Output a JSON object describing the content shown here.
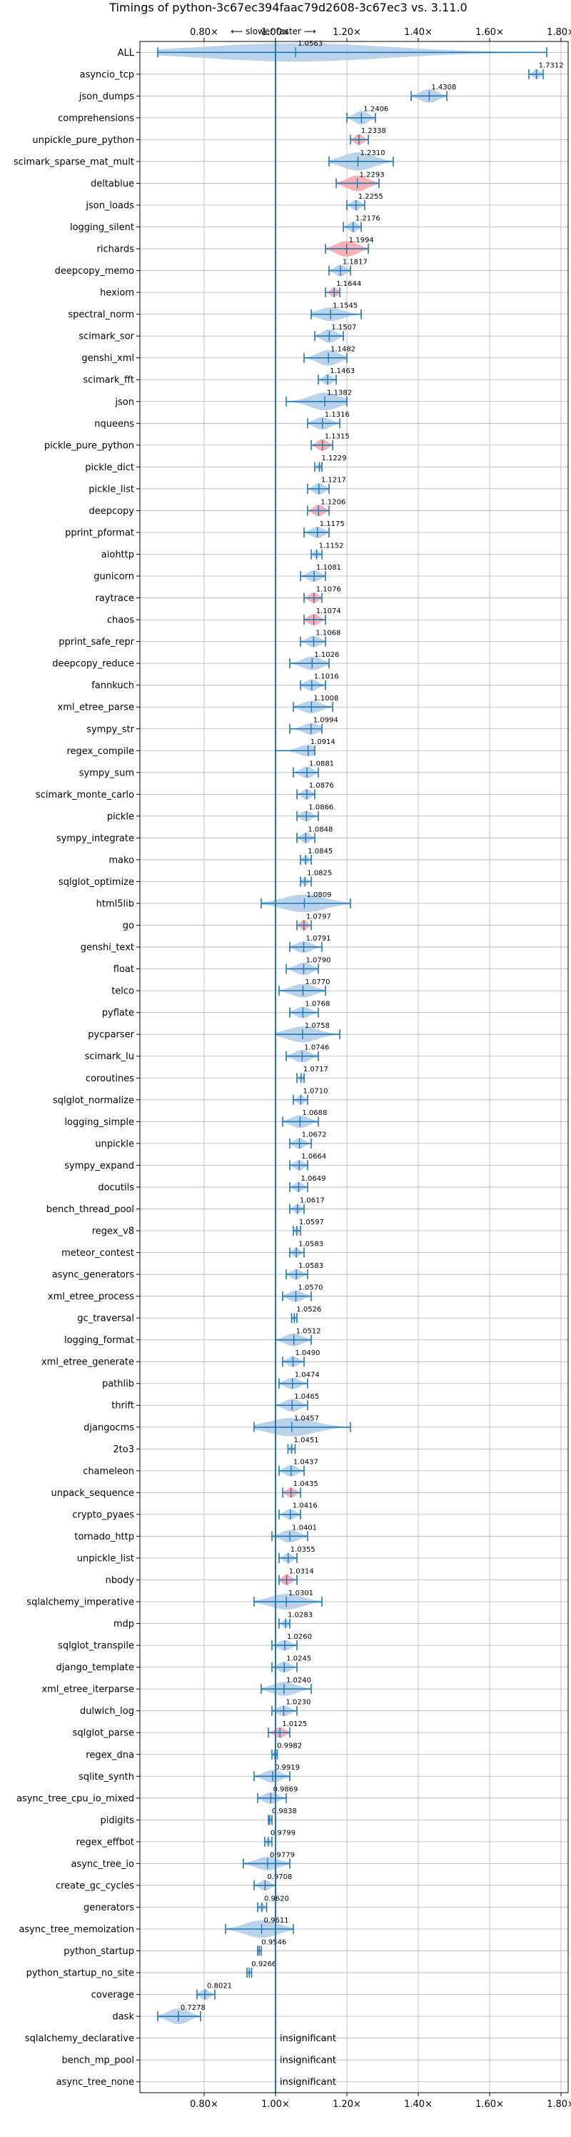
{
  "chart_data": {
    "type": "violin",
    "title": "Timings of python-3c67ec394faac79d2608-3c67ec3 vs. 3.11.0",
    "direction_hint": "⟵ slower   faster ⟶",
    "xlim": [
      0.62,
      1.82
    ],
    "x_ticks": [
      {
        "value": 0.8,
        "label": "0.80×"
      },
      {
        "value": 1.0,
        "label": "1.00×"
      },
      {
        "value": 1.2,
        "label": "1.20×"
      },
      {
        "value": 1.4,
        "label": "1.40×"
      },
      {
        "value": 1.6,
        "label": "1.60×"
      },
      {
        "value": 1.8,
        "label": "1.80×"
      }
    ],
    "reference_line": 1.0,
    "grid": true,
    "colors": {
      "normal": "#aecbe8",
      "highlight": "#f4a3a8",
      "accent": "#1f77b4"
    },
    "insignificant_label": "insignificant",
    "benchmarks": [
      {
        "name": "ALL",
        "label": "1.0563",
        "value": 1.0563,
        "lo": 0.67,
        "hi": 1.76,
        "spread": 0.11,
        "highlight": false
      },
      {
        "name": "asyncio_tcp",
        "label": "1.7312",
        "value": 1.7312,
        "lo": 1.71,
        "hi": 1.75,
        "spread": 0.02,
        "highlight": false
      },
      {
        "name": "json_dumps",
        "label": "1.4308",
        "value": 1.4308,
        "lo": 1.38,
        "hi": 1.48,
        "spread": 0.04,
        "highlight": false
      },
      {
        "name": "comprehensions",
        "label": "1.2406",
        "value": 1.2406,
        "lo": 1.2,
        "hi": 1.28,
        "spread": 0.04,
        "highlight": false
      },
      {
        "name": "unpickle_pure_python",
        "label": "1.2338",
        "value": 1.2338,
        "lo": 1.21,
        "hi": 1.26,
        "spread": 0.025,
        "highlight": true
      },
      {
        "name": "scimark_sparse_mat_mult",
        "label": "1.2310",
        "value": 1.231,
        "lo": 1.15,
        "hi": 1.33,
        "spread": 0.07,
        "highlight": false
      },
      {
        "name": "deltablue",
        "label": "1.2293",
        "value": 1.2293,
        "lo": 1.17,
        "hi": 1.29,
        "spread": 0.05,
        "highlight": true
      },
      {
        "name": "json_loads",
        "label": "1.2255",
        "value": 1.2255,
        "lo": 1.2,
        "hi": 1.25,
        "spread": 0.025,
        "highlight": false
      },
      {
        "name": "logging_silent",
        "label": "1.2176",
        "value": 1.2176,
        "lo": 1.19,
        "hi": 1.24,
        "spread": 0.025,
        "highlight": false
      },
      {
        "name": "richards",
        "label": "1.1994",
        "value": 1.1994,
        "lo": 1.14,
        "hi": 1.26,
        "spread": 0.05,
        "highlight": true
      },
      {
        "name": "deepcopy_memo",
        "label": "1.1817",
        "value": 1.1817,
        "lo": 1.15,
        "hi": 1.21,
        "spread": 0.03,
        "highlight": false
      },
      {
        "name": "hexiom",
        "label": "1.1644",
        "value": 1.1644,
        "lo": 1.14,
        "hi": 1.18,
        "spread": 0.02,
        "highlight": true
      },
      {
        "name": "spectral_norm",
        "label": "1.1545",
        "value": 1.1545,
        "lo": 1.1,
        "hi": 1.24,
        "spread": 0.04,
        "highlight": false
      },
      {
        "name": "scimark_sor",
        "label": "1.1507",
        "value": 1.1507,
        "lo": 1.11,
        "hi": 1.19,
        "spread": 0.04,
        "highlight": false
      },
      {
        "name": "genshi_xml",
        "label": "1.1482",
        "value": 1.1482,
        "lo": 1.08,
        "hi": 1.2,
        "spread": 0.05,
        "highlight": false
      },
      {
        "name": "scimark_fft",
        "label": "1.1463",
        "value": 1.1463,
        "lo": 1.12,
        "hi": 1.17,
        "spread": 0.025,
        "highlight": false
      },
      {
        "name": "json",
        "label": "1.1382",
        "value": 1.1382,
        "lo": 1.03,
        "hi": 1.2,
        "spread": 0.06,
        "highlight": false
      },
      {
        "name": "nqueens",
        "label": "1.1316",
        "value": 1.1316,
        "lo": 1.09,
        "hi": 1.18,
        "spread": 0.035,
        "highlight": false
      },
      {
        "name": "pickle_pure_python",
        "label": "1.1315",
        "value": 1.1315,
        "lo": 1.1,
        "hi": 1.16,
        "spread": 0.03,
        "highlight": true
      },
      {
        "name": "pickle_dict",
        "label": "1.1229",
        "value": 1.1229,
        "lo": 1.11,
        "hi": 1.13,
        "spread": 0.012,
        "highlight": false
      },
      {
        "name": "pickle_list",
        "label": "1.1217",
        "value": 1.1217,
        "lo": 1.09,
        "hi": 1.15,
        "spread": 0.03,
        "highlight": false
      },
      {
        "name": "deepcopy",
        "label": "1.1206",
        "value": 1.1206,
        "lo": 1.09,
        "hi": 1.15,
        "spread": 0.03,
        "highlight": true
      },
      {
        "name": "pprint_pformat",
        "label": "1.1175",
        "value": 1.1175,
        "lo": 1.08,
        "hi": 1.15,
        "spread": 0.03,
        "highlight": false
      },
      {
        "name": "aiohttp",
        "label": "1.1152",
        "value": 1.1152,
        "lo": 1.1,
        "hi": 1.13,
        "spread": 0.015,
        "highlight": false
      },
      {
        "name": "gunicorn",
        "label": "1.1081",
        "value": 1.1081,
        "lo": 1.07,
        "hi": 1.14,
        "spread": 0.03,
        "highlight": false
      },
      {
        "name": "raytrace",
        "label": "1.1076",
        "value": 1.1076,
        "lo": 1.08,
        "hi": 1.13,
        "spread": 0.025,
        "highlight": true
      },
      {
        "name": "chaos",
        "label": "1.1074",
        "value": 1.1074,
        "lo": 1.08,
        "hi": 1.14,
        "spread": 0.03,
        "highlight": true
      },
      {
        "name": "pprint_safe_repr",
        "label": "1.1068",
        "value": 1.1068,
        "lo": 1.07,
        "hi": 1.14,
        "spread": 0.03,
        "highlight": false
      },
      {
        "name": "deepcopy_reduce",
        "label": "1.1026",
        "value": 1.1026,
        "lo": 1.04,
        "hi": 1.15,
        "spread": 0.04,
        "highlight": false
      },
      {
        "name": "fannkuch",
        "label": "1.1016",
        "value": 1.1016,
        "lo": 1.07,
        "hi": 1.14,
        "spread": 0.03,
        "highlight": false
      },
      {
        "name": "xml_etree_parse",
        "label": "1.1008",
        "value": 1.1008,
        "lo": 1.05,
        "hi": 1.16,
        "spread": 0.035,
        "highlight": false
      },
      {
        "name": "sympy_str",
        "label": "1.0994",
        "value": 1.0994,
        "lo": 1.04,
        "hi": 1.13,
        "spread": 0.03,
        "highlight": false
      },
      {
        "name": "regex_compile",
        "label": "1.0914",
        "value": 1.0914,
        "lo": 1.0,
        "hi": 1.11,
        "spread": 0.03,
        "highlight": false
      },
      {
        "name": "sympy_sum",
        "label": "1.0881",
        "value": 1.0881,
        "lo": 1.05,
        "hi": 1.12,
        "spread": 0.03,
        "highlight": false
      },
      {
        "name": "scimark_monte_carlo",
        "label": "1.0876",
        "value": 1.0876,
        "lo": 1.06,
        "hi": 1.11,
        "spread": 0.025,
        "highlight": false
      },
      {
        "name": "pickle",
        "label": "1.0866",
        "value": 1.0866,
        "lo": 1.06,
        "hi": 1.12,
        "spread": 0.025,
        "highlight": false
      },
      {
        "name": "sympy_integrate",
        "label": "1.0848",
        "value": 1.0848,
        "lo": 1.06,
        "hi": 1.11,
        "spread": 0.025,
        "highlight": false
      },
      {
        "name": "mako",
        "label": "1.0845",
        "value": 1.0845,
        "lo": 1.07,
        "hi": 1.1,
        "spread": 0.015,
        "highlight": false
      },
      {
        "name": "sqlglot_optimize",
        "label": "1.0825",
        "value": 1.0825,
        "lo": 1.07,
        "hi": 1.1,
        "spread": 0.015,
        "highlight": false
      },
      {
        "name": "html5lib",
        "label": "1.0809",
        "value": 1.0809,
        "lo": 0.96,
        "hi": 1.21,
        "spread": 0.06,
        "highlight": false
      },
      {
        "name": "go",
        "label": "1.0797",
        "value": 1.0797,
        "lo": 1.06,
        "hi": 1.1,
        "spread": 0.025,
        "highlight": true
      },
      {
        "name": "genshi_text",
        "label": "1.0791",
        "value": 1.0791,
        "lo": 1.04,
        "hi": 1.13,
        "spread": 0.03,
        "highlight": false
      },
      {
        "name": "float",
        "label": "1.0790",
        "value": 1.079,
        "lo": 1.03,
        "hi": 1.12,
        "spread": 0.035,
        "highlight": false
      },
      {
        "name": "telco",
        "label": "1.0770",
        "value": 1.077,
        "lo": 1.01,
        "hi": 1.14,
        "spread": 0.04,
        "highlight": false
      },
      {
        "name": "pyflate",
        "label": "1.0768",
        "value": 1.0768,
        "lo": 1.04,
        "hi": 1.12,
        "spread": 0.03,
        "highlight": false
      },
      {
        "name": "pycparser",
        "label": "1.0758",
        "value": 1.0758,
        "lo": 1.0,
        "hi": 1.18,
        "spread": 0.05,
        "highlight": false
      },
      {
        "name": "scimark_lu",
        "label": "1.0746",
        "value": 1.0746,
        "lo": 1.03,
        "hi": 1.12,
        "spread": 0.035,
        "highlight": false
      },
      {
        "name": "coroutines",
        "label": "1.0717",
        "value": 1.0717,
        "lo": 1.06,
        "hi": 1.08,
        "spread": 0.01,
        "highlight": false
      },
      {
        "name": "sqlglot_normalize",
        "label": "1.0710",
        "value": 1.071,
        "lo": 1.05,
        "hi": 1.09,
        "spread": 0.02,
        "highlight": false
      },
      {
        "name": "logging_simple",
        "label": "1.0688",
        "value": 1.0688,
        "lo": 1.02,
        "hi": 1.12,
        "spread": 0.035,
        "highlight": false
      },
      {
        "name": "unpickle",
        "label": "1.0672",
        "value": 1.0672,
        "lo": 1.04,
        "hi": 1.1,
        "spread": 0.025,
        "highlight": false
      },
      {
        "name": "sympy_expand",
        "label": "1.0664",
        "value": 1.0664,
        "lo": 1.04,
        "hi": 1.09,
        "spread": 0.025,
        "highlight": false
      },
      {
        "name": "docutils",
        "label": "1.0649",
        "value": 1.0649,
        "lo": 1.04,
        "hi": 1.09,
        "spread": 0.02,
        "highlight": false
      },
      {
        "name": "bench_thread_pool",
        "label": "1.0617",
        "value": 1.0617,
        "lo": 1.04,
        "hi": 1.08,
        "spread": 0.02,
        "highlight": false
      },
      {
        "name": "regex_v8",
        "label": "1.0597",
        "value": 1.0597,
        "lo": 1.05,
        "hi": 1.07,
        "spread": 0.01,
        "highlight": false
      },
      {
        "name": "meteor_contest",
        "label": "1.0583",
        "value": 1.0583,
        "lo": 1.04,
        "hi": 1.08,
        "spread": 0.02,
        "highlight": false
      },
      {
        "name": "async_generators",
        "label": "1.0583",
        "value": 1.0583,
        "lo": 1.03,
        "hi": 1.09,
        "spread": 0.025,
        "highlight": false
      },
      {
        "name": "xml_etree_process",
        "label": "1.0570",
        "value": 1.057,
        "lo": 1.02,
        "hi": 1.1,
        "spread": 0.03,
        "highlight": false
      },
      {
        "name": "gc_traversal",
        "label": "1.0526",
        "value": 1.0526,
        "lo": 1.045,
        "hi": 1.06,
        "spread": 0.008,
        "highlight": false
      },
      {
        "name": "logging_format",
        "label": "1.0512",
        "value": 1.0512,
        "lo": 1.0,
        "hi": 1.1,
        "spread": 0.035,
        "highlight": false
      },
      {
        "name": "xml_etree_generate",
        "label": "1.0490",
        "value": 1.049,
        "lo": 1.02,
        "hi": 1.08,
        "spread": 0.025,
        "highlight": false
      },
      {
        "name": "pathlib",
        "label": "1.0474",
        "value": 1.0474,
        "lo": 1.01,
        "hi": 1.09,
        "spread": 0.03,
        "highlight": false
      },
      {
        "name": "thrift",
        "label": "1.0465",
        "value": 1.0465,
        "lo": 1.0,
        "hi": 1.09,
        "spread": 0.035,
        "highlight": false
      },
      {
        "name": "djangocms",
        "label": "1.0457",
        "value": 1.0457,
        "lo": 0.94,
        "hi": 1.21,
        "spread": 0.07,
        "highlight": false
      },
      {
        "name": "2to3",
        "label": "1.0451",
        "value": 1.0451,
        "lo": 1.035,
        "hi": 1.055,
        "spread": 0.01,
        "highlight": false
      },
      {
        "name": "chameleon",
        "label": "1.0437",
        "value": 1.0437,
        "lo": 1.01,
        "hi": 1.08,
        "spread": 0.03,
        "highlight": false
      },
      {
        "name": "unpack_sequence",
        "label": "1.0435",
        "value": 1.0435,
        "lo": 1.02,
        "hi": 1.07,
        "spread": 0.02,
        "highlight": true
      },
      {
        "name": "crypto_pyaes",
        "label": "1.0416",
        "value": 1.0416,
        "lo": 1.01,
        "hi": 1.07,
        "spread": 0.025,
        "highlight": false
      },
      {
        "name": "tornado_http",
        "label": "1.0401",
        "value": 1.0401,
        "lo": 0.99,
        "hi": 1.09,
        "spread": 0.035,
        "highlight": false
      },
      {
        "name": "unpickle_list",
        "label": "1.0355",
        "value": 1.0355,
        "lo": 1.01,
        "hi": 1.06,
        "spread": 0.02,
        "highlight": false
      },
      {
        "name": "nbody",
        "label": "1.0314",
        "value": 1.0314,
        "lo": 1.01,
        "hi": 1.06,
        "spread": 0.025,
        "highlight": true
      },
      {
        "name": "sqlalchemy_imperative",
        "label": "1.0301",
        "value": 1.0301,
        "lo": 0.94,
        "hi": 1.13,
        "spread": 0.05,
        "highlight": false
      },
      {
        "name": "mdp",
        "label": "1.0283",
        "value": 1.0283,
        "lo": 1.01,
        "hi": 1.04,
        "spread": 0.015,
        "highlight": false
      },
      {
        "name": "sqlglot_transpile",
        "label": "1.0260",
        "value": 1.026,
        "lo": 0.99,
        "hi": 1.06,
        "spread": 0.025,
        "highlight": false
      },
      {
        "name": "django_template",
        "label": "1.0245",
        "value": 1.0245,
        "lo": 0.99,
        "hi": 1.06,
        "spread": 0.025,
        "highlight": false
      },
      {
        "name": "xml_etree_iterparse",
        "label": "1.0240",
        "value": 1.024,
        "lo": 0.96,
        "hi": 1.1,
        "spread": 0.04,
        "highlight": false
      },
      {
        "name": "dulwich_log",
        "label": "1.0230",
        "value": 1.023,
        "lo": 0.99,
        "hi": 1.06,
        "spread": 0.025,
        "highlight": false
      },
      {
        "name": "sqlglot_parse",
        "label": "1.0125",
        "value": 1.0125,
        "lo": 0.98,
        "hi": 1.04,
        "spread": 0.025,
        "highlight": true
      },
      {
        "name": "regex_dna",
        "label": "0.9982",
        "value": 0.9982,
        "lo": 0.99,
        "hi": 1.005,
        "spread": 0.008,
        "highlight": false
      },
      {
        "name": "sqlite_synth",
        "label": "0.9919",
        "value": 0.9919,
        "lo": 0.94,
        "hi": 1.04,
        "spread": 0.035,
        "highlight": false
      },
      {
        "name": "async_tree_cpu_io_mixed",
        "label": "0.9869",
        "value": 0.9869,
        "lo": 0.95,
        "hi": 1.03,
        "spread": 0.03,
        "highlight": false
      },
      {
        "name": "pidigits",
        "label": "0.9838",
        "value": 0.9838,
        "lo": 0.98,
        "hi": 0.99,
        "spread": 0.006,
        "highlight": false
      },
      {
        "name": "regex_effbot",
        "label": "0.9799",
        "value": 0.9799,
        "lo": 0.97,
        "hi": 0.99,
        "spread": 0.01,
        "highlight": false
      },
      {
        "name": "async_tree_io",
        "label": "0.9779",
        "value": 0.9779,
        "lo": 0.91,
        "hi": 1.04,
        "spread": 0.04,
        "highlight": false
      },
      {
        "name": "create_gc_cycles",
        "label": "0.9708",
        "value": 0.9708,
        "lo": 0.94,
        "hi": 1.0,
        "spread": 0.025,
        "highlight": false
      },
      {
        "name": "generators",
        "label": "0.9620",
        "value": 0.962,
        "lo": 0.95,
        "hi": 0.975,
        "spread": 0.012,
        "highlight": false
      },
      {
        "name": "async_tree_memoization",
        "label": "0.9611",
        "value": 0.9611,
        "lo": 0.86,
        "hi": 1.05,
        "spread": 0.06,
        "highlight": false
      },
      {
        "name": "python_startup",
        "label": "0.9546",
        "value": 0.9546,
        "lo": 0.95,
        "hi": 0.96,
        "spread": 0.006,
        "highlight": false
      },
      {
        "name": "python_startup_no_site",
        "label": "0.9266",
        "value": 0.9266,
        "lo": 0.92,
        "hi": 0.933,
        "spread": 0.006,
        "highlight": false
      },
      {
        "name": "coverage",
        "label": "0.8021",
        "value": 0.8021,
        "lo": 0.78,
        "hi": 0.83,
        "spread": 0.025,
        "highlight": false
      },
      {
        "name": "dask",
        "label": "0.7278",
        "value": 0.7278,
        "lo": 0.67,
        "hi": 0.79,
        "spread": 0.05,
        "highlight": false
      },
      {
        "name": "sqlalchemy_declarative",
        "label": "",
        "value": null,
        "insignificant": true
      },
      {
        "name": "bench_mp_pool",
        "label": "",
        "value": null,
        "insignificant": true
      },
      {
        "name": "async_tree_none",
        "label": "",
        "value": null,
        "insignificant": true
      }
    ]
  }
}
